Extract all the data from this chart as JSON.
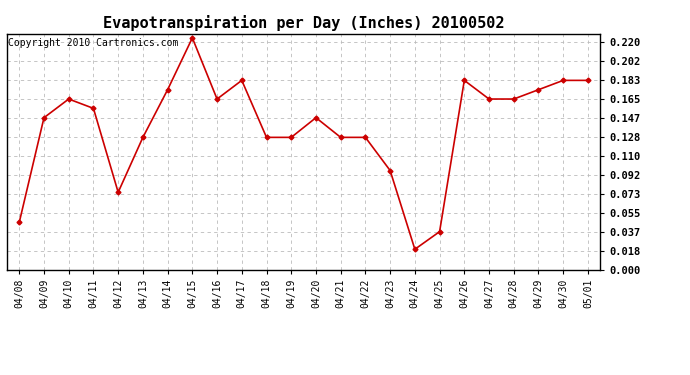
{
  "title": "Evapotranspiration per Day (Inches) 20100502",
  "copyright": "Copyright 2010 Cartronics.com",
  "x_labels": [
    "04/08",
    "04/09",
    "04/10",
    "04/11",
    "04/12",
    "04/13",
    "04/14",
    "04/15",
    "04/16",
    "04/17",
    "04/18",
    "04/19",
    "04/20",
    "04/21",
    "04/22",
    "04/23",
    "04/24",
    "04/25",
    "04/26",
    "04/27",
    "04/28",
    "04/29",
    "04/30",
    "05/01"
  ],
  "y_values": [
    0.046,
    0.147,
    0.165,
    0.156,
    0.075,
    0.128,
    0.174,
    0.224,
    0.165,
    0.183,
    0.128,
    0.128,
    0.147,
    0.128,
    0.128,
    0.096,
    0.02,
    0.037,
    0.183,
    0.165,
    0.165,
    0.174,
    0.183,
    0.183
  ],
  "y_ticks": [
    0.0,
    0.018,
    0.037,
    0.055,
    0.073,
    0.092,
    0.11,
    0.128,
    0.147,
    0.165,
    0.183,
    0.202,
    0.22
  ],
  "ylim": [
    0.0,
    0.228
  ],
  "line_color": "#cc0000",
  "marker": "D",
  "marker_size": 2.5,
  "bg_color": "#ffffff",
  "grid_color": "#bbbbbb",
  "title_fontsize": 11,
  "copyright_fontsize": 7,
  "tick_fontsize": 7.5,
  "label_fontsize": 7
}
